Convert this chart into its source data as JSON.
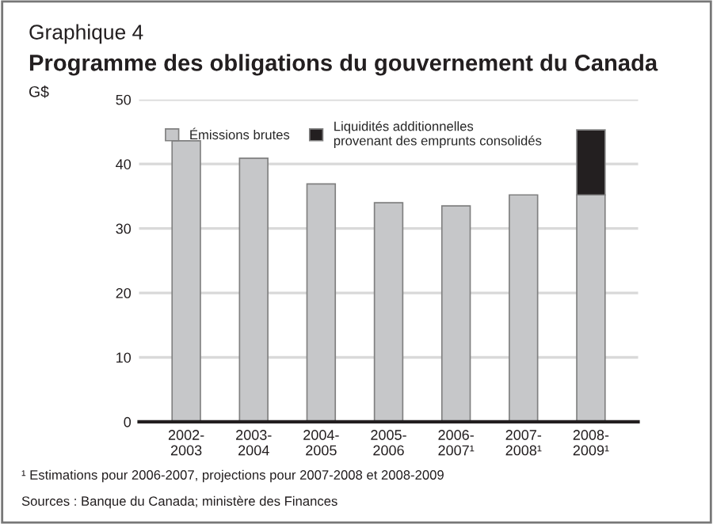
{
  "chart_data": {
    "type": "bar",
    "subtitle": "Graphique 4",
    "title": "Programme des obligations du gouvernement du Canada",
    "ylabel": "G$",
    "categories": [
      "2002-\n2003",
      "2003-\n2004",
      "2004-\n2005",
      "2005-\n2006",
      "2006-\n2007¹",
      "2007-\n2008¹",
      "2008-\n2009¹"
    ],
    "series": [
      {
        "name": "Émissions brutes",
        "color": "#c6c7c9",
        "values": [
          43.6,
          40.9,
          36.9,
          34.0,
          33.5,
          35.2,
          35.2
        ]
      },
      {
        "name": "Liquidités additionnelles\nprovenant des emprunts consolidés",
        "color": "#231f20",
        "values": [
          null,
          null,
          null,
          null,
          null,
          null,
          10.1
        ]
      }
    ],
    "stacked": true,
    "ylim": [
      0,
      50
    ],
    "yticks": [
      0,
      10,
      20,
      30,
      40,
      50
    ],
    "grid": "y",
    "legend": "top",
    "annotations": [
      "¹ Estimations pour 2006-2007, projections pour 2007-2008 et 2008-2009",
      "Sources : Banque du Canada; ministère des Finances"
    ]
  }
}
